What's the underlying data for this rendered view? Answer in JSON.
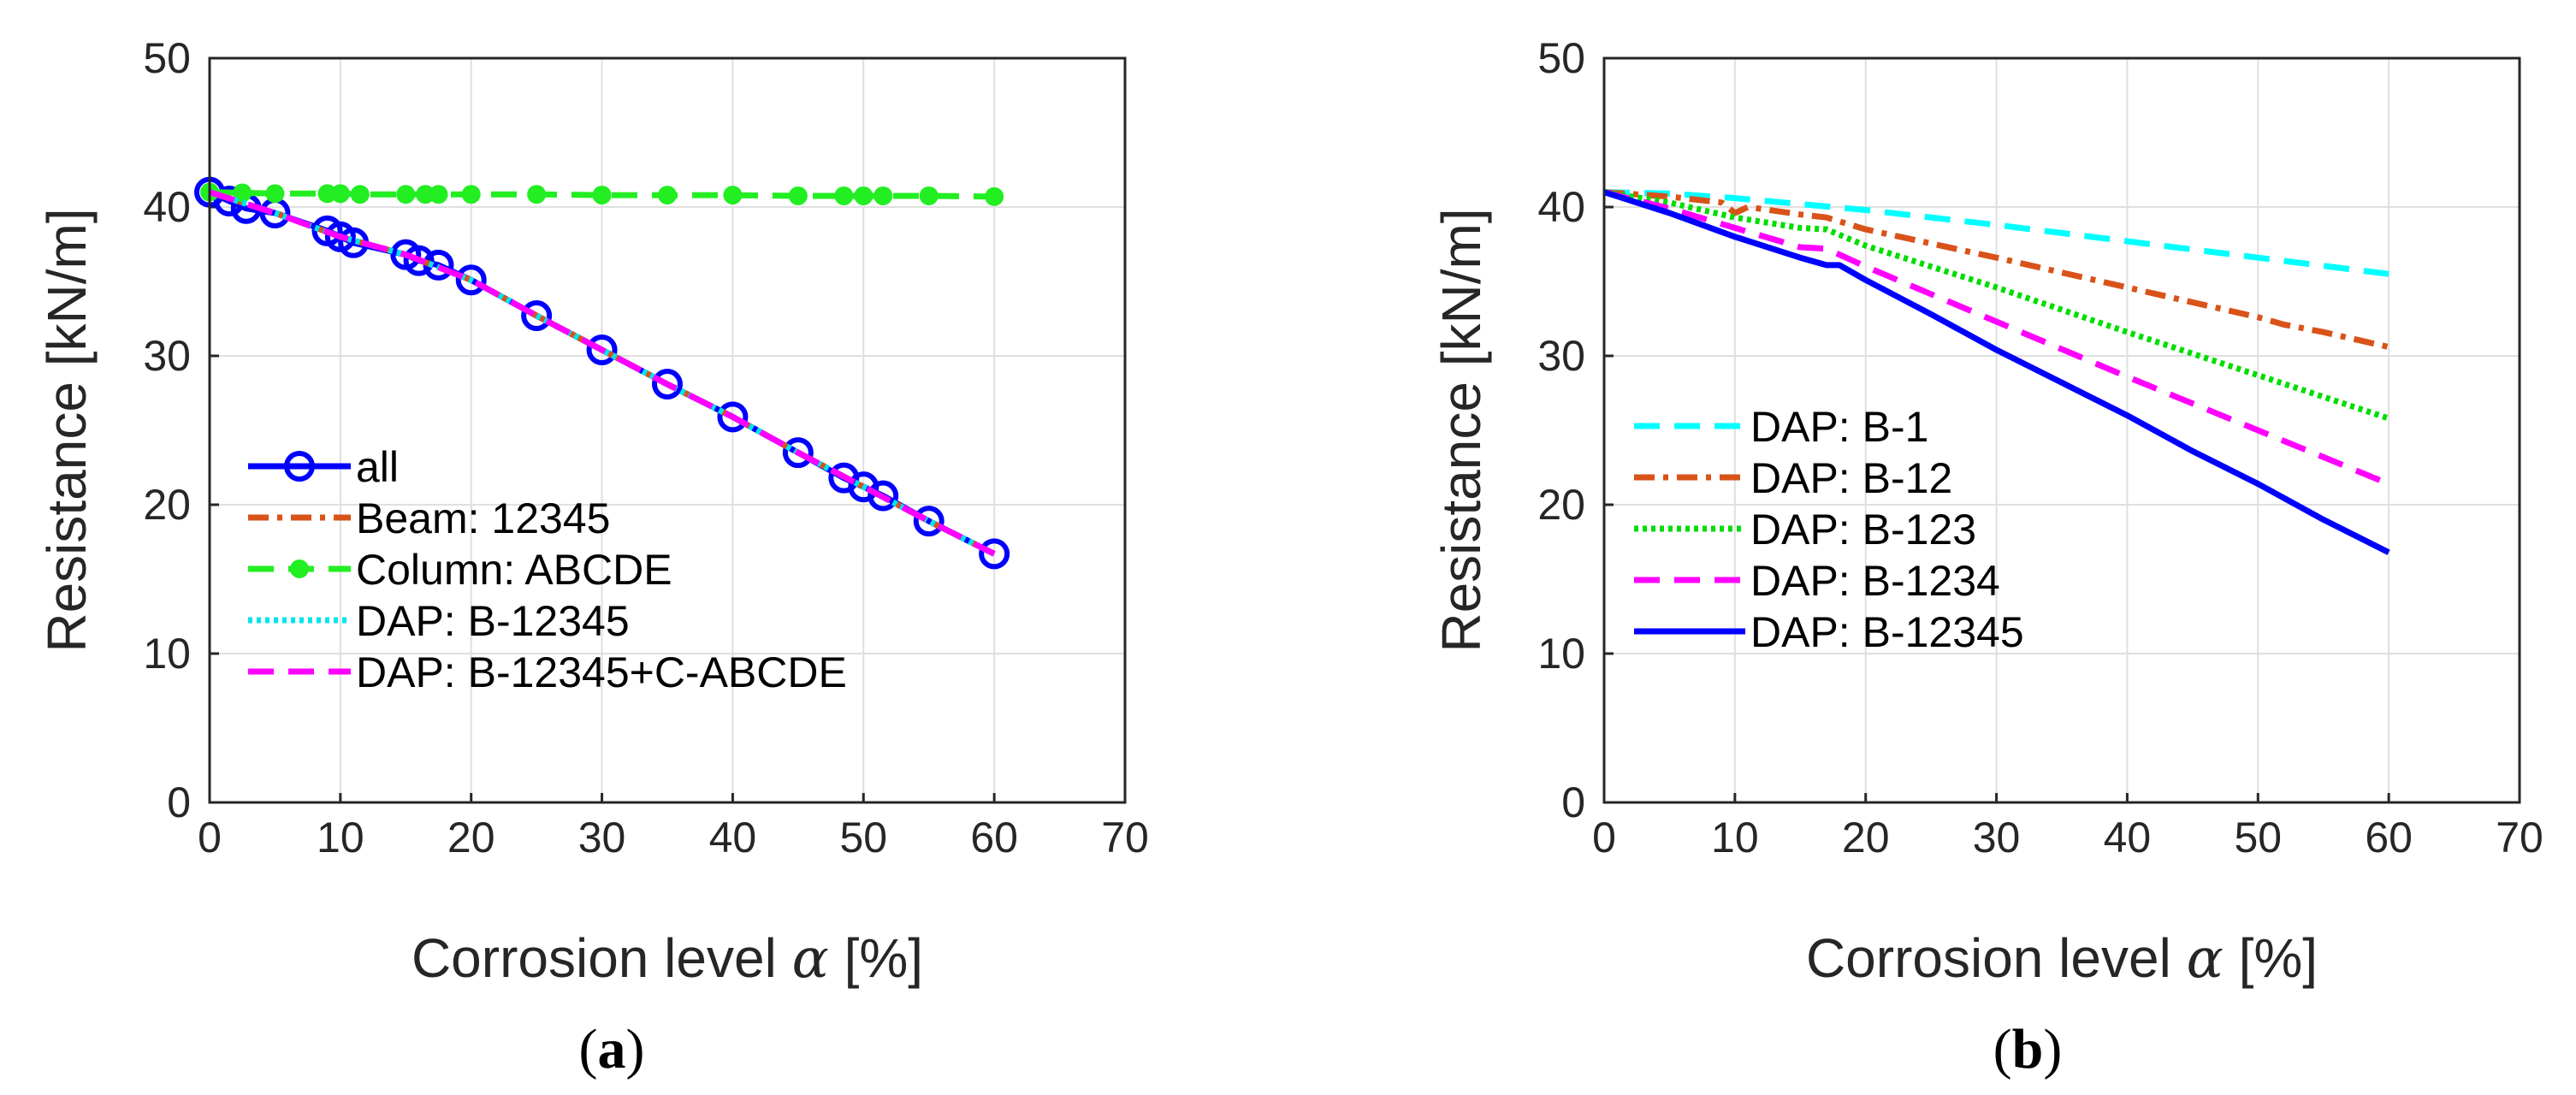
{
  "chart_data": [
    {
      "type": "line",
      "panel_caption": {
        "open": "(",
        "letter": "a",
        "close": ")"
      },
      "xlabel_prefix": "Corrosion level ",
      "xlabel_symbol": "α",
      "xlabel_suffix": " [%]",
      "ylabel": "Resistance [kN/m]",
      "xlim": [
        0,
        70
      ],
      "ylim": [
        0,
        50
      ],
      "xticks": [
        0,
        10,
        20,
        30,
        40,
        50,
        60,
        70
      ],
      "yticks": [
        0,
        10,
        20,
        30,
        40,
        50
      ],
      "grid": true,
      "legend_position": "bottom-left",
      "series": [
        {
          "name": "all",
          "color": "#0000ff",
          "style": "solid-circles",
          "x": [
            0,
            1.5,
            2.8,
            5,
            9,
            10,
            11,
            15,
            16,
            17.5,
            20,
            25,
            30,
            35,
            40,
            45,
            48.5,
            50,
            51.5,
            55,
            60
          ],
          "y": [
            41.0,
            40.4,
            39.9,
            39.6,
            38.4,
            38.0,
            37.6,
            36.8,
            36.4,
            36.1,
            35.1,
            32.7,
            30.4,
            28.1,
            25.9,
            23.5,
            21.8,
            21.2,
            20.6,
            18.9,
            16.7
          ]
        },
        {
          "name": "Beam: 12345",
          "color": "#d95319",
          "style": "dashdot",
          "x": [
            0,
            5,
            10,
            15,
            20,
            25,
            30,
            35,
            40,
            45,
            50,
            55,
            60
          ],
          "y": [
            41.0,
            39.6,
            38.0,
            36.8,
            35.1,
            32.7,
            30.4,
            28.1,
            25.9,
            23.5,
            21.2,
            18.9,
            16.7
          ]
        },
        {
          "name": "Column: ABCDE",
          "color": "#22ee22",
          "style": "dashed-dots",
          "x": [
            0,
            2.5,
            5,
            9,
            10,
            11.5,
            15,
            16.5,
            17.5,
            20,
            25,
            30,
            35,
            40,
            45,
            48.5,
            50,
            51.5,
            55,
            60
          ],
          "y": [
            41.0,
            40.95,
            40.9,
            40.9,
            40.9,
            40.85,
            40.85,
            40.85,
            40.85,
            40.85,
            40.85,
            40.8,
            40.8,
            40.8,
            40.75,
            40.75,
            40.75,
            40.75,
            40.75,
            40.7
          ]
        },
        {
          "name": "DAP: B-12345",
          "color": "#00e5ee",
          "style": "dotted",
          "x": [
            0,
            5,
            10,
            15,
            20,
            25,
            30,
            35,
            40,
            45,
            50,
            55,
            60
          ],
          "y": [
            41.0,
            39.6,
            38.0,
            36.8,
            35.1,
            32.7,
            30.4,
            28.1,
            25.9,
            23.5,
            21.2,
            18.9,
            16.7
          ]
        },
        {
          "name": "DAP: B-12345+C-ABCDE",
          "color": "#ff00ff",
          "style": "dashed",
          "x": [
            0,
            5,
            10,
            15,
            20,
            25,
            30,
            35,
            40,
            45,
            50,
            55,
            60
          ],
          "y": [
            41.0,
            39.6,
            38.0,
            36.8,
            35.1,
            32.7,
            30.4,
            28.1,
            25.9,
            23.5,
            21.2,
            18.9,
            16.7
          ]
        }
      ]
    },
    {
      "type": "line",
      "panel_caption": {
        "open": "(",
        "letter": "b",
        "close": ")"
      },
      "xlabel_prefix": "Corrosion level ",
      "xlabel_symbol": "α",
      "xlabel_suffix": " [%]",
      "ylabel": "Resistance [kN/m]",
      "xlim": [
        0,
        70
      ],
      "ylim": [
        0,
        50
      ],
      "xticks": [
        0,
        10,
        20,
        30,
        40,
        50,
        60,
        70
      ],
      "yticks": [
        0,
        10,
        20,
        30,
        40,
        50
      ],
      "grid": true,
      "legend_position": "bottom-left",
      "series": [
        {
          "name": "DAP: B-1",
          "color": "#00ffff",
          "style": "dashed",
          "x": [
            0,
            5,
            10,
            15,
            20,
            30,
            40,
            50,
            60
          ],
          "y": [
            41.0,
            40.9,
            40.6,
            40.2,
            39.8,
            38.8,
            37.7,
            36.6,
            35.5
          ]
        },
        {
          "name": "DAP: B-12",
          "color": "#d95319",
          "style": "dashdot",
          "x": [
            0,
            5,
            9,
            10,
            11,
            15,
            17,
            20,
            30,
            40,
            50,
            52,
            55,
            60
          ],
          "y": [
            41.0,
            40.7,
            40.3,
            39.6,
            40.0,
            39.5,
            39.3,
            38.5,
            36.6,
            34.6,
            32.6,
            32.1,
            31.6,
            30.6
          ]
        },
        {
          "name": "DAP: B-123",
          "color": "#00dd00",
          "style": "dotted",
          "x": [
            0,
            5,
            10,
            15,
            17,
            20,
            30,
            40,
            50,
            60
          ],
          "y": [
            41.0,
            40.3,
            39.3,
            38.6,
            38.5,
            37.4,
            34.6,
            31.6,
            28.7,
            25.8
          ]
        },
        {
          "name": "DAP: B-1234",
          "color": "#ff00ff",
          "style": "dashed",
          "x": [
            0,
            5,
            10,
            15,
            17,
            20,
            30,
            40,
            50,
            60
          ],
          "y": [
            41.0,
            39.9,
            38.6,
            37.3,
            37.2,
            36.0,
            32.3,
            28.6,
            25.0,
            21.4
          ]
        },
        {
          "name": "DAP: B-12345",
          "color": "#0000ff",
          "style": "solid",
          "x": [
            0,
            5,
            10,
            15,
            17,
            18,
            20,
            25,
            30,
            35,
            40,
            45,
            50,
            55,
            60
          ],
          "y": [
            41.0,
            39.6,
            38.0,
            36.6,
            36.1,
            36.1,
            35.1,
            32.8,
            30.4,
            28.2,
            26.0,
            23.6,
            21.4,
            19.0,
            16.8
          ]
        }
      ]
    }
  ]
}
